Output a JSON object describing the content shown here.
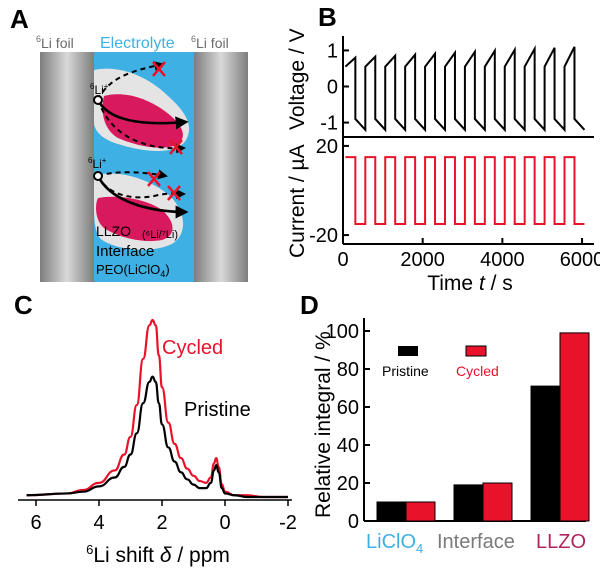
{
  "panels": {
    "a": {
      "label": "A",
      "foil_left_iso": "6",
      "foil_left": "Li foil",
      "electrolyte": "Electrolyte",
      "foil_right_iso": "6",
      "foil_right": "Li foil",
      "li_top_iso": "6",
      "li_top": "Li",
      "li_top_charge": "+",
      "li_mid_iso": "6",
      "li_mid": "Li",
      "li_mid_charge": "+",
      "llzo": "LLZO",
      "exchange": "(⁶Li/⁷Li)",
      "interface": "Interface",
      "peo_prefix": "PEO(LiClO",
      "peo_sub": "4",
      "peo_suffix": ")",
      "colors": {
        "foil": "#9a9a9a",
        "electrolyte": "#3fb0e3",
        "llzo": "#d8195e",
        "interface": "#e4e4e4",
        "block": "#e8132b"
      }
    },
    "b": {
      "label": "B",
      "voltage_ylabel": "Voltage / V",
      "current_ylabel": "Current / µA",
      "xlabel_prefix": "Time ",
      "xlabel_var": "t",
      "xlabel_suffix": " / s"
    },
    "c": {
      "label": "C",
      "cycled_label": "Cycled",
      "pristine_label": "Pristine",
      "xlabel_iso": "6",
      "xlabel_prefix": "Li shift ",
      "xlabel_var": "δ",
      "xlabel_suffix": " / ppm"
    },
    "d": {
      "label": "D",
      "ylabel": "Relative integral / %",
      "legend_pristine": "Pristine",
      "legend_cycled": "Cycled",
      "cat1_prefix": "LiClO",
      "cat1_sub": "4",
      "cat2": "Interface",
      "cat3": "LLZO"
    }
  },
  "chart_data": [
    {
      "panel": "B-top",
      "type": "line",
      "ylabel": "Voltage / V",
      "xlim": [
        0,
        6300
      ],
      "ylim": [
        -1.4,
        1.4
      ],
      "yticks": [
        1,
        0,
        -1
      ],
      "color": "#000000",
      "period_s": 500,
      "cycles": 12,
      "description_values": {
        "upper_start": 0.55,
        "upper_end_first": 0.8,
        "upper_end_last": 1.1,
        "lower_start": -0.9,
        "lower_end": -1.2
      }
    },
    {
      "panel": "B-bottom",
      "type": "line",
      "xlabel": "Time t / s",
      "ylabel": "Current / µA",
      "xlim": [
        0,
        6300
      ],
      "ylim": [
        -24,
        24
      ],
      "xticks": [
        0,
        2000,
        4000,
        6000
      ],
      "yticks": [
        20,
        -20
      ],
      "color": "#e8132b",
      "period_s": 500,
      "cycles": 12,
      "amplitude_uA": 15
    },
    {
      "panel": "C",
      "type": "line",
      "xlabel": "6Li shift δ / ppm",
      "xlim": [
        6,
        -2
      ],
      "xticks": [
        6,
        4,
        2,
        0,
        -2
      ],
      "series": [
        {
          "name": "Cycled",
          "color": "#e8132b",
          "x": [
            6.3,
            5,
            4.5,
            4,
            3.5,
            3.2,
            3.0,
            2.8,
            2.6,
            2.4,
            2.3,
            2.2,
            2.1,
            2.0,
            1.8,
            1.6,
            1.4,
            1.2,
            1.0,
            0.8,
            0.6,
            0.45,
            0.35,
            0.28,
            0.2,
            0.1,
            0.0,
            -0.3,
            -0.7,
            -1.2,
            -2.0
          ],
          "y": [
            0.01,
            0.02,
            0.04,
            0.08,
            0.15,
            0.24,
            0.34,
            0.52,
            0.78,
            0.97,
            1.0,
            0.97,
            0.8,
            0.62,
            0.42,
            0.3,
            0.22,
            0.16,
            0.12,
            0.09,
            0.08,
            0.11,
            0.19,
            0.22,
            0.17,
            0.07,
            0.03,
            0.01,
            0.01,
            0.0,
            0.0
          ]
        },
        {
          "name": "Pristine",
          "color": "#000000",
          "x": [
            6.3,
            5,
            4.5,
            4,
            3.5,
            3.2,
            3.0,
            2.8,
            2.6,
            2.4,
            2.3,
            2.2,
            2.1,
            2.0,
            1.8,
            1.6,
            1.4,
            1.2,
            1.0,
            0.8,
            0.6,
            0.45,
            0.35,
            0.28,
            0.2,
            0.1,
            0.0,
            -0.3,
            -0.7,
            -1.2,
            -2.0
          ],
          "y": [
            0.01,
            0.02,
            0.03,
            0.06,
            0.11,
            0.17,
            0.24,
            0.36,
            0.53,
            0.65,
            0.68,
            0.65,
            0.53,
            0.41,
            0.28,
            0.2,
            0.14,
            0.1,
            0.07,
            0.05,
            0.05,
            0.08,
            0.15,
            0.18,
            0.14,
            0.05,
            0.02,
            0.01,
            0.0,
            0.0,
            0.0
          ]
        }
      ]
    },
    {
      "panel": "D",
      "type": "bar",
      "ylabel": "Relative integral / %",
      "ylim": [
        0,
        100
      ],
      "yticks": [
        0,
        20,
        40,
        60,
        80,
        100
      ],
      "categories": [
        "LiClO4",
        "Interface",
        "LLZO"
      ],
      "category_colors": [
        "#3fb0e3",
        "#7a7a7a",
        "#b0255f"
      ],
      "series": [
        {
          "name": "Pristine",
          "color": "#000000",
          "values": [
            10,
            19,
            71
          ]
        },
        {
          "name": "Cycled",
          "color": "#e8132b",
          "values": [
            10,
            20,
            99
          ]
        }
      ]
    }
  ]
}
